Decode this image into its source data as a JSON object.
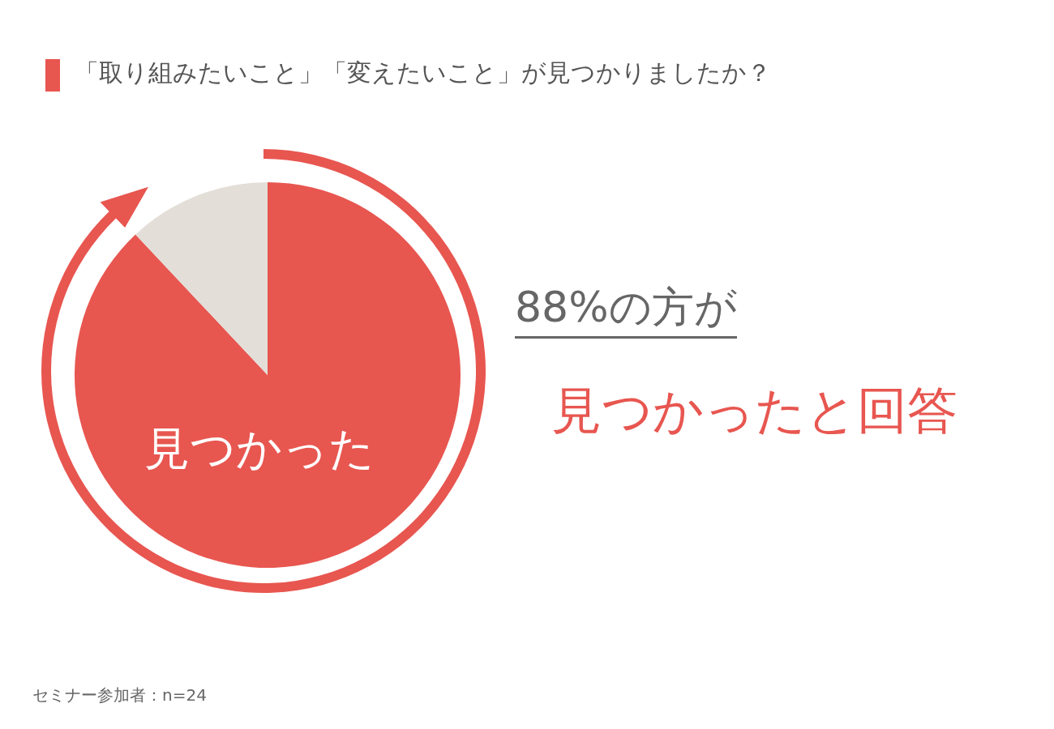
{
  "chart_data": {
    "type": "pie",
    "title": "「取り組みたいこと」「変えたいこと」が見つかりましたか？",
    "categories": [
      "見つかった",
      null
    ],
    "values": [
      88,
      12
    ],
    "colors": [
      "#e85650",
      "#e3ded8"
    ],
    "annotations": [
      "88%の方が",
      "見つかったと回答",
      "セミナー参加者：n=24"
    ]
  }
}
